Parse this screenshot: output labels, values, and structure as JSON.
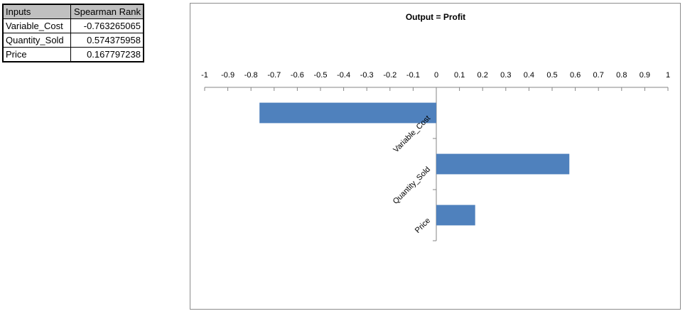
{
  "table": {
    "headers": [
      "Inputs",
      "Spearman Rank"
    ],
    "rows": [
      [
        "Variable_Cost",
        "-0.763265065"
      ],
      [
        "Quantity_Sold",
        "0.574375958"
      ],
      [
        "Price",
        "0.167797238"
      ]
    ]
  },
  "chart_data": {
    "type": "bar",
    "orientation": "horizontal",
    "title": "Output = Profit",
    "categories": [
      "Variable_Cost",
      "Quantity_Sold",
      "Price"
    ],
    "values": [
      -0.763265065,
      0.574375958,
      0.167797238
    ],
    "xlim": [
      -1,
      1
    ],
    "xticks": [
      "-1",
      "-0.9",
      "-0.8",
      "-0.7",
      "-0.6",
      "-0.5",
      "-0.4",
      "-0.3",
      "-0.2",
      "-0.1",
      "0",
      "0.1",
      "0.2",
      "0.3",
      "0.4",
      "0.5",
      "0.6",
      "0.7",
      "0.8",
      "0.9",
      "1"
    ],
    "xaxis_position": "top",
    "grid": false,
    "legend": "none",
    "bar_color": "#4f81bd"
  }
}
